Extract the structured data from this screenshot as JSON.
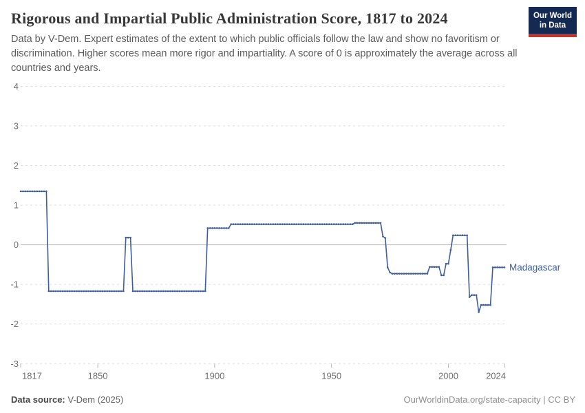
{
  "header": {
    "title": "Rigorous and Impartial Public Administration Score, 1817 to 2024",
    "subtitle": "Data by V-Dem. Expert estimates of the extent to which public officials follow the law and show no favoritism or discrimination. Higher scores mean more rigor and impartiality. A score of 0 is approximately the average across all countries and years.",
    "logo": {
      "line1": "Our World",
      "line2": "in Data"
    }
  },
  "chart_data": {
    "type": "line",
    "title": "Rigorous and Impartial Public Administration Score, 1817 to 2024",
    "entity_label": "Madagascar",
    "xlim": [
      1817,
      2024
    ],
    "ylim": [
      -3,
      4
    ],
    "x_ticks": [
      1817,
      1850,
      1900,
      1950,
      2000,
      2024
    ],
    "y_ticks": [
      4,
      3,
      2,
      1,
      0,
      -1,
      -2,
      -3
    ],
    "grid": true,
    "zero_line": true,
    "legend_position": "line-end-label",
    "series": [
      {
        "name": "Madagascar",
        "color": "#3d5c9e",
        "step_segments": [
          {
            "from": 1817,
            "to": 1828,
            "value": 1.35
          },
          {
            "from": 1829,
            "to": 1861,
            "value": -1.17
          },
          {
            "from": 1862,
            "to": 1864,
            "value": 0.18
          },
          {
            "from": 1865,
            "to": 1896,
            "value": -1.17
          },
          {
            "from": 1897,
            "to": 1906,
            "value": 0.42
          },
          {
            "from": 1907,
            "to": 1959,
            "value": 0.52
          },
          {
            "from": 1960,
            "to": 1971,
            "value": 0.55
          },
          {
            "from": 1972,
            "to": 1972,
            "value": 0.21
          },
          {
            "from": 1973,
            "to": 1973,
            "value": 0.17
          },
          {
            "from": 1974,
            "to": 1974,
            "value": -0.57
          },
          {
            "from": 1975,
            "to": 1975,
            "value": -0.7
          },
          {
            "from": 1976,
            "to": 1991,
            "value": -0.73
          },
          {
            "from": 1992,
            "to": 1996,
            "value": -0.56
          },
          {
            "from": 1997,
            "to": 1998,
            "value": -0.77
          },
          {
            "from": 1999,
            "to": 2000,
            "value": -0.48
          },
          {
            "from": 2001,
            "to": 2001,
            "value": -0.13
          },
          {
            "from": 2002,
            "to": 2008,
            "value": 0.24
          },
          {
            "from": 2009,
            "to": 2009,
            "value": -1.32
          },
          {
            "from": 2010,
            "to": 2012,
            "value": -1.27
          },
          {
            "from": 2013,
            "to": 2013,
            "value": -1.7
          },
          {
            "from": 2014,
            "to": 2018,
            "value": -1.52
          },
          {
            "from": 2019,
            "to": 2024,
            "value": -0.57
          }
        ]
      }
    ]
  },
  "footer": {
    "source_label": "Data source:",
    "source_value": " V-Dem (2025)",
    "credit": "OurWorldinData.org/state-capacity | CC BY"
  },
  "colors": {
    "line": "#3d5c9e",
    "grid": "#dedede",
    "zero_line": "#bdbdbd",
    "axis_text": "#6e6e6e",
    "tick_mark": "#b5b5b5",
    "logo_bg": "#142a52",
    "logo_stripe": "#c0342b"
  }
}
